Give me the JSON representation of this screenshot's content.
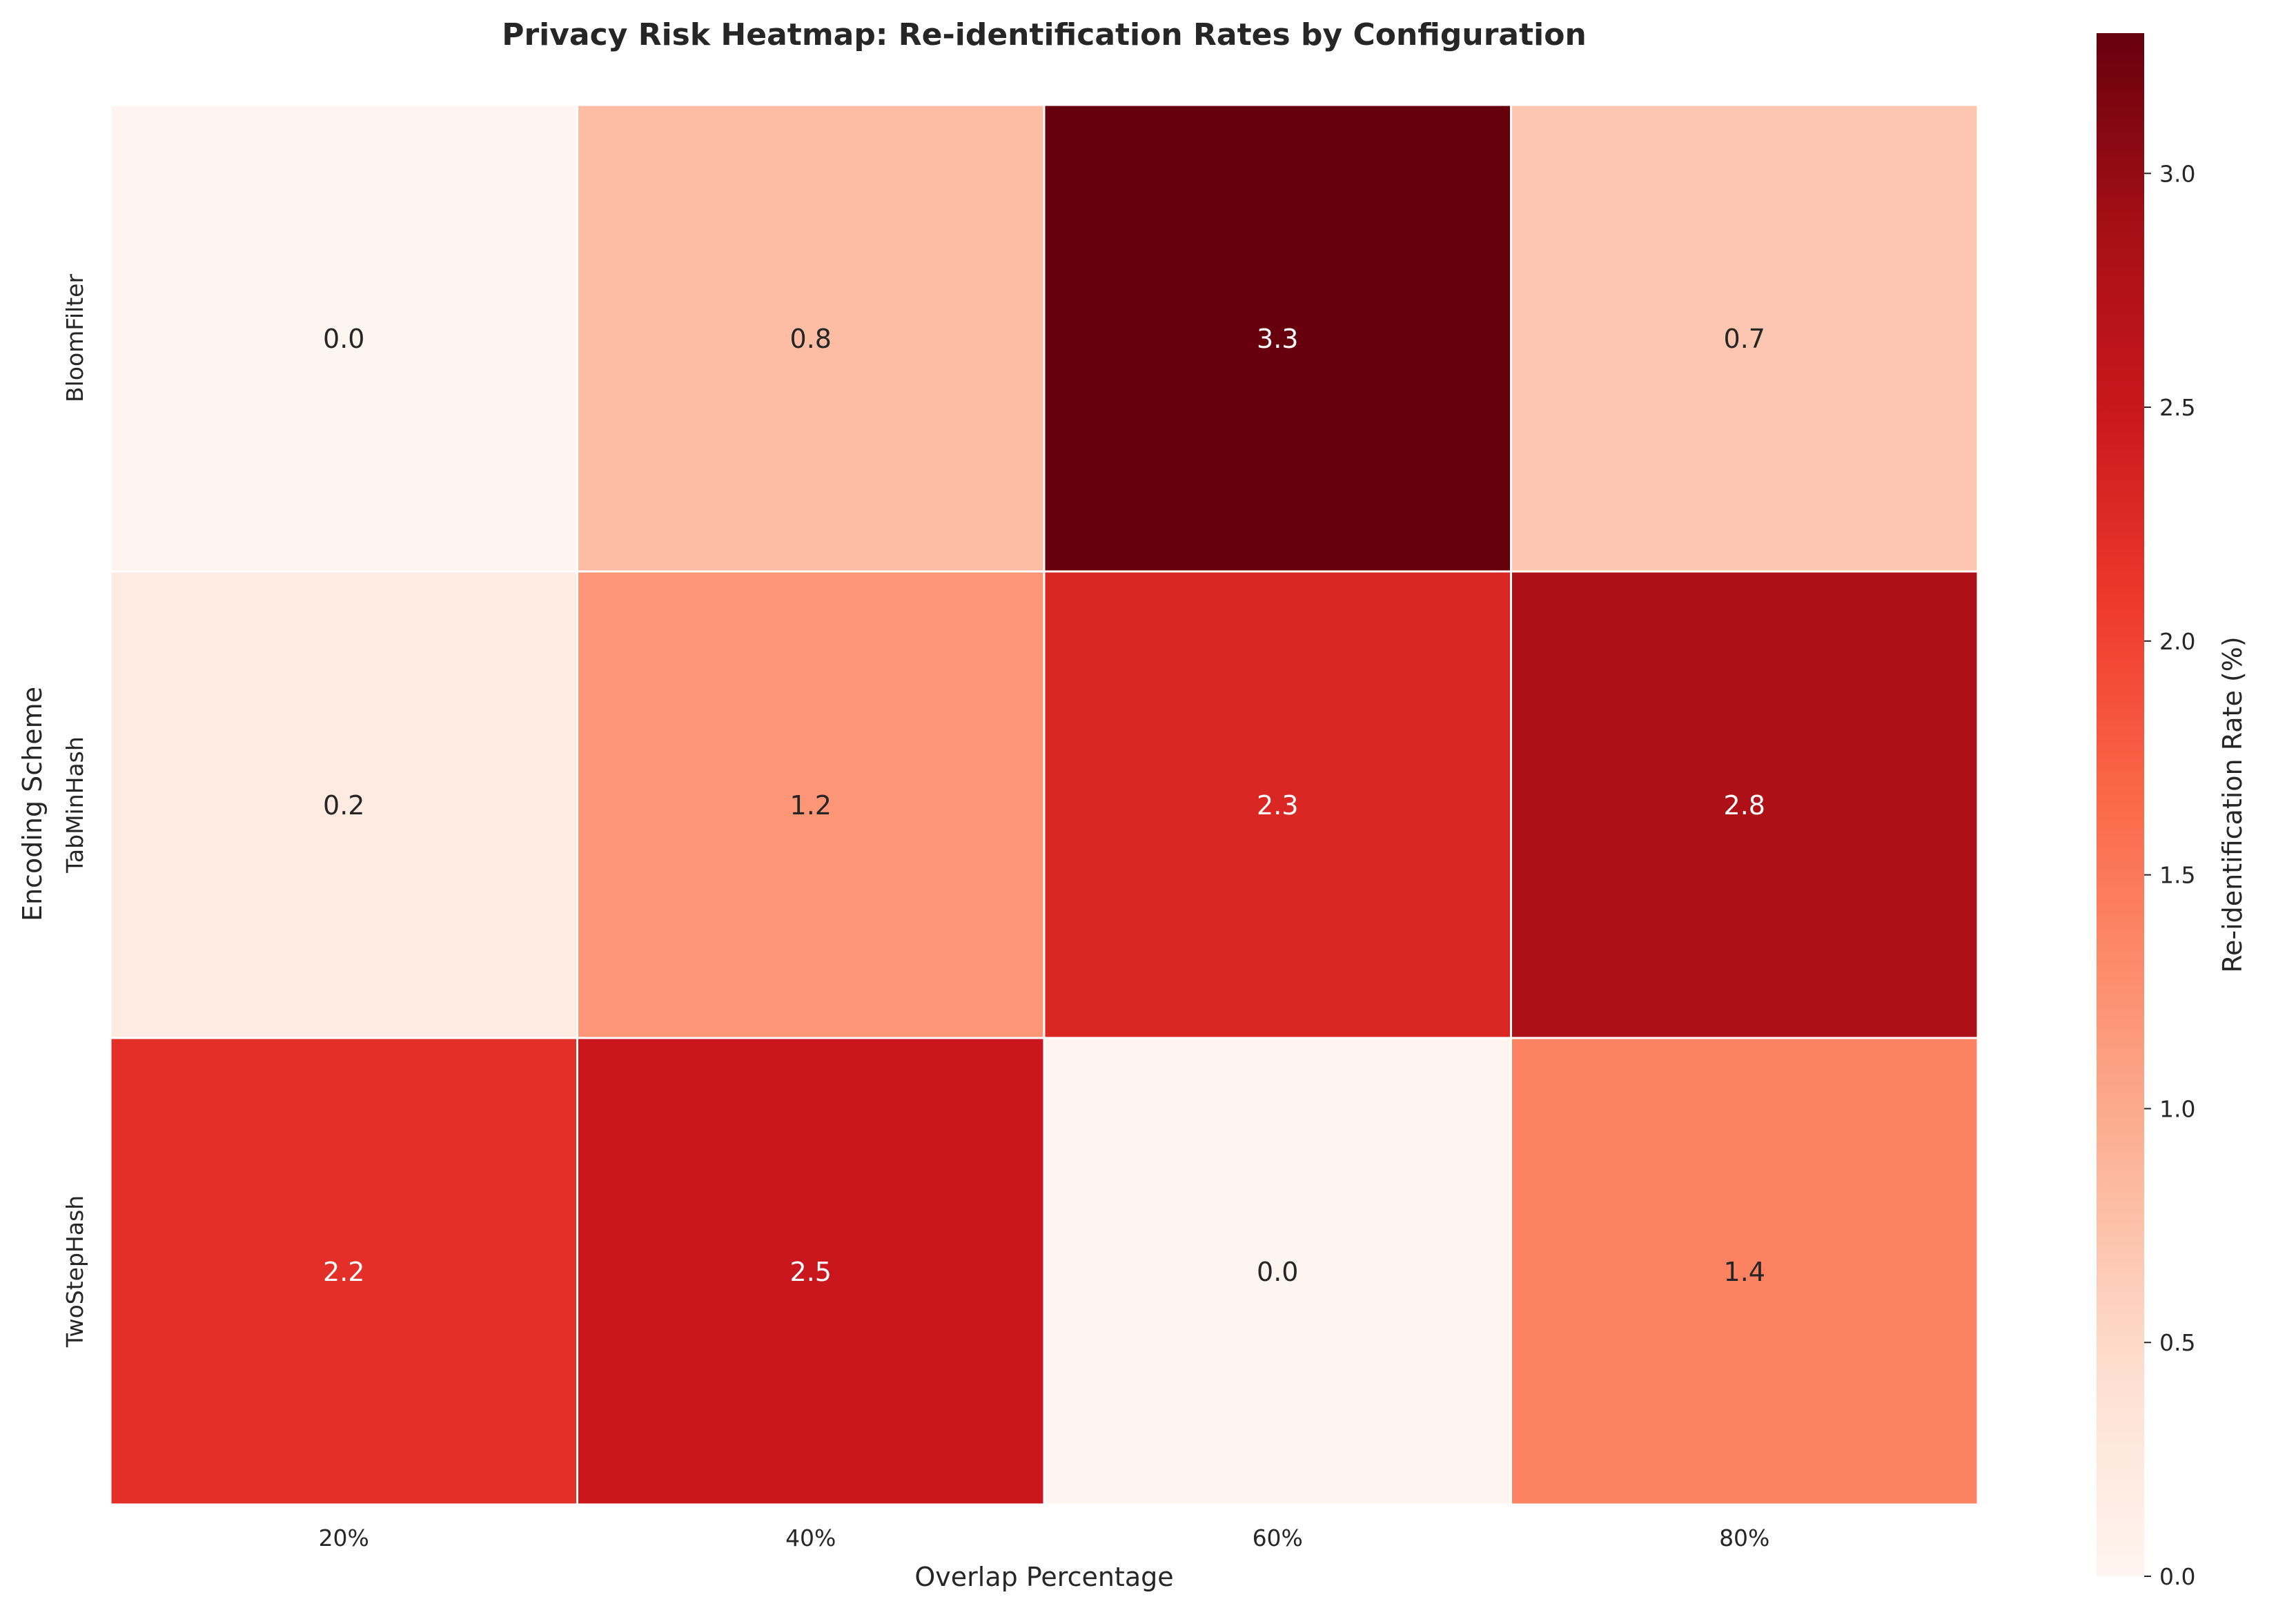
{
  "chart_data": {
    "type": "heatmap",
    "title": "Privacy Risk Heatmap: Re-identification Rates by Configuration",
    "xlabel": "Overlap Percentage",
    "ylabel": "Encoding Scheme",
    "x_categories": [
      "20%",
      "40%",
      "60%",
      "80%"
    ],
    "y_categories": [
      "BloomFilter",
      "TabMinHash",
      "TwoStepHash"
    ],
    "values": [
      [
        0.0,
        0.8,
        3.3,
        0.7
      ],
      [
        0.2,
        1.2,
        2.3,
        2.8
      ],
      [
        2.2,
        2.5,
        0.0,
        1.4
      ]
    ],
    "value_labels": [
      [
        "0.0",
        "0.8",
        "3.3",
        "0.7"
      ],
      [
        "0.2",
        "1.2",
        "2.3",
        "2.8"
      ],
      [
        "2.2",
        "2.5",
        "0.0",
        "1.4"
      ]
    ],
    "colormap": "Reds",
    "colorbar": {
      "label": "Re-identification Rate (%)",
      "range": [
        0.0,
        3.3
      ],
      "ticks": [
        0.0,
        0.5,
        1.0,
        1.5,
        2.0,
        2.5,
        3.0
      ],
      "tick_labels": [
        "0.0",
        "0.5",
        "1.0",
        "1.5",
        "2.0",
        "2.5",
        "3.0"
      ]
    },
    "cell_border_color": "#ffffff",
    "text_color_dark": "#262626",
    "text_color_light": "#ffffff"
  }
}
